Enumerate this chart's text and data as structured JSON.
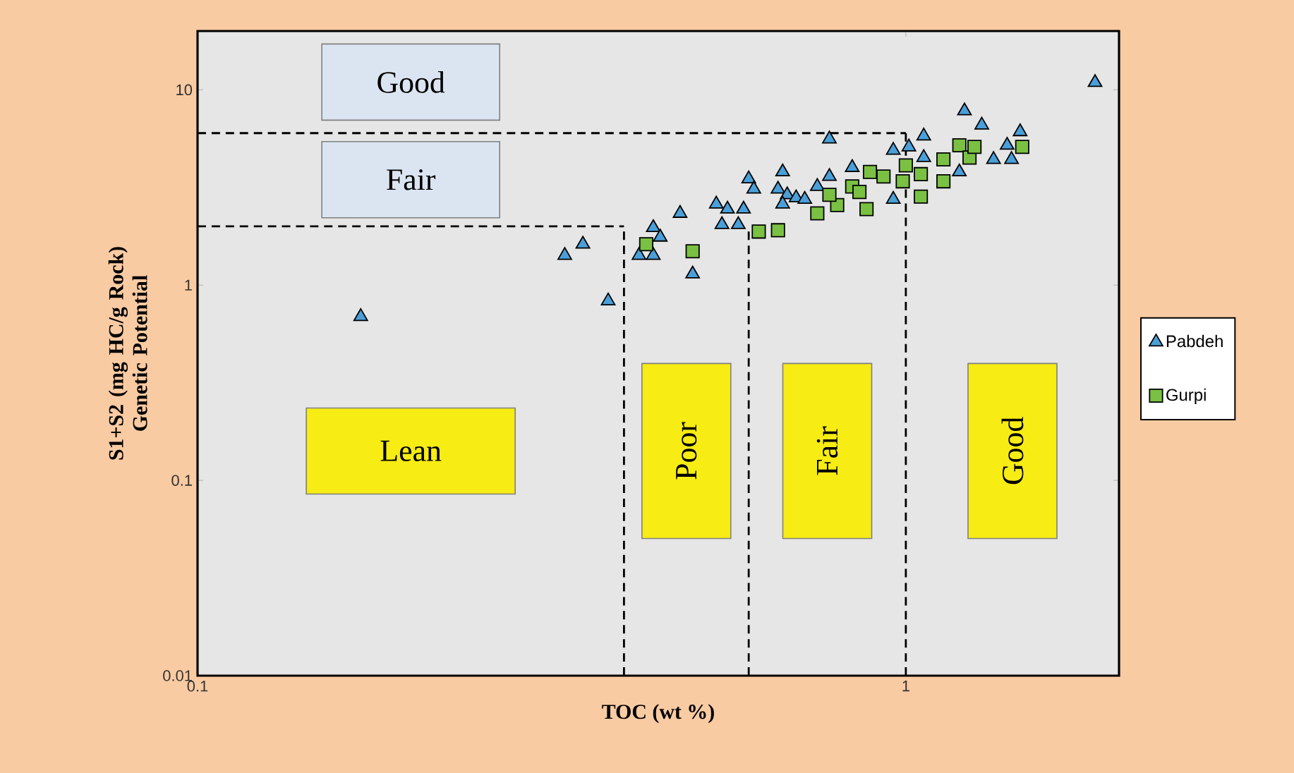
{
  "chart_data": {
    "type": "scatter",
    "xlabel": "TOC (wt %)",
    "ylabel": "S1+S2 (mg HC/g Rock) Genetic Potential",
    "log": "xy",
    "xlim": [
      0.1,
      2
    ],
    "ylim": [
      0.01,
      20
    ],
    "xticks": [
      0.1,
      1
    ],
    "yticks": [
      0.01,
      0.1,
      1,
      10
    ],
    "legend": "right",
    "series": [
      {
        "name": "Pabdeh",
        "color": "#4a9fd8",
        "marker": "triangle",
        "x": [
          0.17,
          0.33,
          0.35,
          0.38,
          0.42,
          0.44,
          0.44,
          0.45,
          0.48,
          0.5,
          0.54,
          0.56,
          0.55,
          0.58,
          0.6,
          0.61,
          0.59,
          0.67,
          0.66,
          0.68,
          0.7,
          0.67,
          0.72,
          0.75,
          0.78,
          0.78,
          0.84,
          0.96,
          0.96,
          1.01,
          1.06,
          1.06,
          1.21,
          1.28,
          1.19,
          1.33,
          1.39,
          1.45,
          1.41,
          1.85
        ],
        "values": [
          0.69,
          1.42,
          1.62,
          0.83,
          1.42,
          1.42,
          1.97,
          1.76,
          2.33,
          1.14,
          2.6,
          2.45,
          2.04,
          2.04,
          3.5,
          3.1,
          2.45,
          3.8,
          3.1,
          2.9,
          2.8,
          2.6,
          2.75,
          3.2,
          3.6,
          5.6,
          4.0,
          2.75,
          4.9,
          5.1,
          5.8,
          4.5,
          7.8,
          6.6,
          3.8,
          4.4,
          5.2,
          6.1,
          4.4,
          10.9
        ]
      },
      {
        "name": "Gurpi",
        "color": "#7ac143",
        "marker": "square",
        "x": [
          0.43,
          0.5,
          0.62,
          0.66,
          0.75,
          0.8,
          0.78,
          0.84,
          0.86,
          0.88,
          0.89,
          0.93,
          0.99,
          1.0,
          1.05,
          1.05,
          1.13,
          1.13,
          1.19,
          1.23,
          1.25,
          1.46
        ],
        "values": [
          1.62,
          1.49,
          1.88,
          1.91,
          2.33,
          2.57,
          2.9,
          3.2,
          3.0,
          2.45,
          3.8,
          3.6,
          3.4,
          4.1,
          2.84,
          3.7,
          4.4,
          3.4,
          5.2,
          4.5,
          5.1,
          5.1
        ]
      }
    ],
    "ref_lines": [
      {
        "axis": "y",
        "value": 2,
        "line_style": "dashed"
      },
      {
        "axis": "y",
        "value": 6,
        "line_style": "dashed"
      },
      {
        "axis": "x",
        "value": 0.4,
        "line_style": "dashed"
      },
      {
        "axis": "x",
        "value": 0.6,
        "line_style": "dashed"
      },
      {
        "axis": "x",
        "value": 1,
        "line_style": "dashed"
      }
    ],
    "annotations": [
      "Good",
      "Fair",
      "Lean",
      "Poor",
      "Fair",
      "Good"
    ]
  }
}
